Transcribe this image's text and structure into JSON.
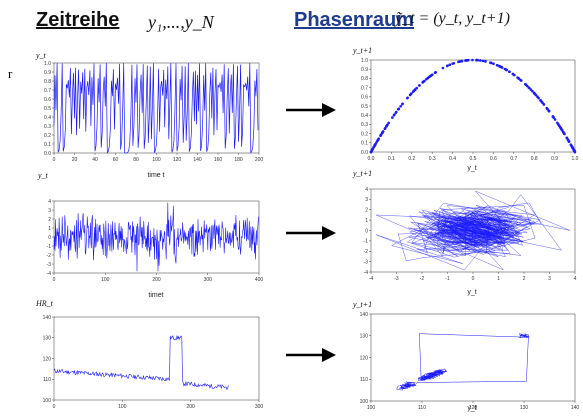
{
  "header": {
    "left_title": "Zeitreihe",
    "left_formula": "y₁,...,y_N",
    "right_title": "Phasenraum",
    "right_formula": "ỹ_t = (y_t, y_t+1)"
  },
  "margin_mark": "r",
  "colors": {
    "series": "#1a1aff",
    "arrow": "#000000",
    "right_title": "#1f3b8f"
  },
  "chart_data": [
    {
      "type": "line",
      "ylabel": "y_t",
      "xlabel": "time t",
      "xlim": [
        0,
        200
      ],
      "ylim": [
        0,
        1
      ],
      "x_ticks": [
        "0",
        "20",
        "40",
        "60",
        "80",
        "100",
        "120",
        "140",
        "160",
        "180",
        "200"
      ],
      "y_ticks": [
        "0.0",
        "0.1",
        "0.2",
        "0.3",
        "0.4",
        "0.5",
        "0.6",
        "0.7",
        "0.8",
        "0.9",
        "1.0"
      ],
      "series": [
        {
          "generator": "logistic",
          "r": 4.0,
          "x0": 0.3141,
          "n": 200
        }
      ]
    },
    {
      "type": "scatter",
      "ylabel": "y_t+1",
      "xlabel": "y_t",
      "xlim": [
        0,
        1
      ],
      "ylim": [
        0,
        1
      ],
      "x_ticks": [
        "0.0",
        "0.1",
        "0.2",
        "0.3",
        "0.4",
        "0.5",
        "0.6",
        "0.7",
        "0.8",
        "0.9",
        "1.0"
      ],
      "y_ticks": [
        "0.0",
        "0.1",
        "0.2",
        "0.3",
        "0.4",
        "0.5",
        "0.6",
        "0.7",
        "0.8",
        "0.9",
        "1.0"
      ]
    },
    {
      "type": "line",
      "ylabel": "y_t",
      "xlabel": "timet",
      "xlim": [
        0,
        400
      ],
      "ylim": [
        -4,
        4
      ],
      "x_ticks": [
        "0",
        "100",
        "200",
        "300",
        "400"
      ],
      "y_ticks": [
        "-4",
        "-3",
        "-2",
        "-1",
        "0",
        "1",
        "2",
        "3",
        "4"
      ],
      "series": [
        {
          "generator": "noise",
          "seed": 7,
          "n": 400,
          "sd": 1.2
        }
      ]
    },
    {
      "type": "line",
      "ylabel": "y_t+1",
      "xlabel": "y_t",
      "xlim": [
        -4,
        4
      ],
      "ylim": [
        -4,
        4
      ],
      "x_ticks": [
        "-4",
        "-3",
        "-2",
        "-1",
        "0",
        "1",
        "2",
        "3",
        "4"
      ],
      "y_ticks": [
        "-4",
        "-3",
        "-2",
        "-1",
        "0",
        "1",
        "2",
        "3",
        "4"
      ]
    },
    {
      "type": "line",
      "ylabel": "HR_t",
      "xlabel": "time t",
      "xlim": [
        0,
        300
      ],
      "ylim": [
        100,
        140
      ],
      "x_ticks": [
        "0",
        "100",
        "200",
        "300"
      ],
      "y_ticks": [
        "100",
        "110",
        "120",
        "130",
        "140"
      ],
      "series": [
        {
          "generator": "hr",
          "seed": 11
        }
      ]
    },
    {
      "type": "line",
      "ylabel": "y_t+1",
      "xlabel": "y_t",
      "xlim": [
        100,
        140
      ],
      "ylim": [
        100,
        140
      ],
      "x_ticks": [
        "100",
        "110",
        "120",
        "130",
        "140"
      ],
      "y_ticks": [
        "100",
        "110",
        "120",
        "130",
        "140"
      ]
    }
  ]
}
